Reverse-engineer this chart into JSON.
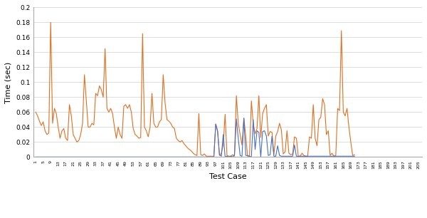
{
  "title": "",
  "xlabel": "Test Case",
  "ylabel": "Time (sec)",
  "ylim": [
    0,
    0.2
  ],
  "yticks": [
    0,
    0.02,
    0.04,
    0.06,
    0.08,
    0.1,
    0.12,
    0.14,
    0.16,
    0.18,
    0.2
  ],
  "x_labels": [
    "1",
    "5",
    "9",
    "13",
    "17",
    "21",
    "25",
    "29",
    "33",
    "37",
    "41",
    "45",
    "49",
    "53",
    "57",
    "61",
    "65",
    "69",
    "73",
    "77",
    "81",
    "85",
    "89",
    "93",
    "97",
    "101",
    "105",
    "109",
    "113",
    "117",
    "121",
    "125",
    "129",
    "133",
    "137",
    "141",
    "145",
    "149",
    "153",
    "157",
    "161",
    "165",
    "169",
    "173",
    "177",
    "181",
    "185",
    "189",
    "193",
    "197",
    "201",
    "205"
  ],
  "orange_color": "#E07020",
  "blue_color": "#4472C4",
  "orange_data": [
    0.06,
    0.055,
    0.048,
    0.042,
    0.047,
    0.035,
    0.03,
    0.032,
    0.18,
    0.045,
    0.065,
    0.058,
    0.04,
    0.025,
    0.035,
    0.038,
    0.025,
    0.022,
    0.07,
    0.055,
    0.03,
    0.025,
    0.02,
    0.022,
    0.03,
    0.045,
    0.11,
    0.075,
    0.04,
    0.04,
    0.045,
    0.043,
    0.085,
    0.082,
    0.095,
    0.09,
    0.08,
    0.145,
    0.065,
    0.06,
    0.065,
    0.058,
    0.04,
    0.025,
    0.04,
    0.03,
    0.025,
    0.068,
    0.07,
    0.065,
    0.07,
    0.06,
    0.038,
    0.03,
    0.028,
    0.025,
    0.026,
    0.165,
    0.04,
    0.035,
    0.027,
    0.04,
    0.085,
    0.045,
    0.04,
    0.04,
    0.047,
    0.05,
    0.11,
    0.072,
    0.05,
    0.048,
    0.045,
    0.04,
    0.038,
    0.025,
    0.022,
    0.02,
    0.022,
    0.018,
    0.015,
    0.012,
    0.01,
    0.008,
    0.005,
    0.003,
    0.002,
    0.058,
    0.003,
    0.002,
    0.004,
    0.001,
    0.001,
    0.001,
    0.001,
    0.001,
    0.044,
    0.035,
    0.002,
    0.005,
    0.016,
    0.057,
    0.002,
    0.001,
    0.001,
    0.003,
    0.001,
    0.082,
    0.045,
    0.03,
    0.016,
    0.052,
    0.028,
    0.001,
    0.001,
    0.075,
    0.044,
    0.031,
    0.038,
    0.082,
    0.026,
    0.058,
    0.065,
    0.07,
    0.028,
    0.034,
    0.033,
    0.003,
    0.028,
    0.034,
    0.045,
    0.036,
    0.004,
    0.007,
    0.035,
    0.005,
    0.003,
    0.004,
    0.027,
    0.025,
    0.001,
    0.001,
    0.005,
    0.002,
    0.001,
    0.001,
    0.027,
    0.025,
    0.07,
    0.025,
    0.015,
    0.05,
    0.053,
    0.078,
    0.07,
    0.03,
    0.035,
    0.002,
    0.005,
    0.001,
    0.002,
    0.065,
    0.062,
    0.169,
    0.06,
    0.055,
    0.065,
    0.04,
    0.02,
    0.002,
    0.003
  ],
  "blue_data": [
    0.0,
    0.0,
    0.0,
    0.0,
    0.0,
    0.0,
    0.0,
    0.0,
    0.0,
    0.0,
    0.0,
    0.0,
    0.0,
    0.0,
    0.0,
    0.0,
    0.0,
    0.0,
    0.0,
    0.0,
    0.0,
    0.0,
    0.0,
    0.0,
    0.0,
    0.0,
    0.0,
    0.0,
    0.0,
    0.0,
    0.0,
    0.0,
    0.0,
    0.0,
    0.0,
    0.0,
    0.0,
    0.0,
    0.0,
    0.0,
    0.0,
    0.0,
    0.0,
    0.0,
    0.0,
    0.0,
    0.0,
    0.0,
    0.0,
    0.0,
    0.0,
    0.0,
    0.0,
    0.0,
    0.0,
    0.0,
    0.0,
    0.0,
    0.0,
    0.0,
    0.0,
    0.0,
    0.0,
    0.0,
    0.0,
    0.0,
    0.0,
    0.0,
    0.0,
    0.0,
    0.0,
    0.0,
    0.0,
    0.0,
    0.0,
    0.0,
    0.0,
    0.0,
    0.0,
    0.0,
    0.0,
    0.0,
    0.0,
    0.0,
    0.0,
    0.0,
    0.0,
    0.0,
    0.0,
    0.0,
    0.0,
    0.0,
    0.0,
    0.0,
    0.0,
    0.0,
    0.044,
    0.034,
    0.003,
    0.001,
    0.03,
    0.0,
    0.001,
    0.0,
    0.001,
    0.0,
    0.003,
    0.051,
    0.025,
    0.002,
    0.001,
    0.052,
    0.002,
    0.002,
    0.001,
    0.0,
    0.05,
    0.01,
    0.035,
    0.033,
    0.0,
    0.034,
    0.035,
    0.028,
    0.002,
    0.003,
    0.028,
    0.001,
    0.001,
    0.015,
    0.002,
    0.001,
    0.001,
    0.001,
    0.001,
    0.001,
    0.001,
    0.001,
    0.016,
    0.001,
    0.001,
    0.001,
    0.001,
    0.001,
    0.001,
    0.001,
    0.001,
    0.001,
    0.001,
    0.001,
    0.001,
    0.001,
    0.001,
    0.001,
    0.001,
    0.001,
    0.001,
    0.001,
    0.001,
    0.001,
    0.001,
    0.001,
    0.001,
    0.001,
    0.001,
    0.001,
    0.001,
    0.001,
    0.001,
    0.001,
    0.001
  ]
}
